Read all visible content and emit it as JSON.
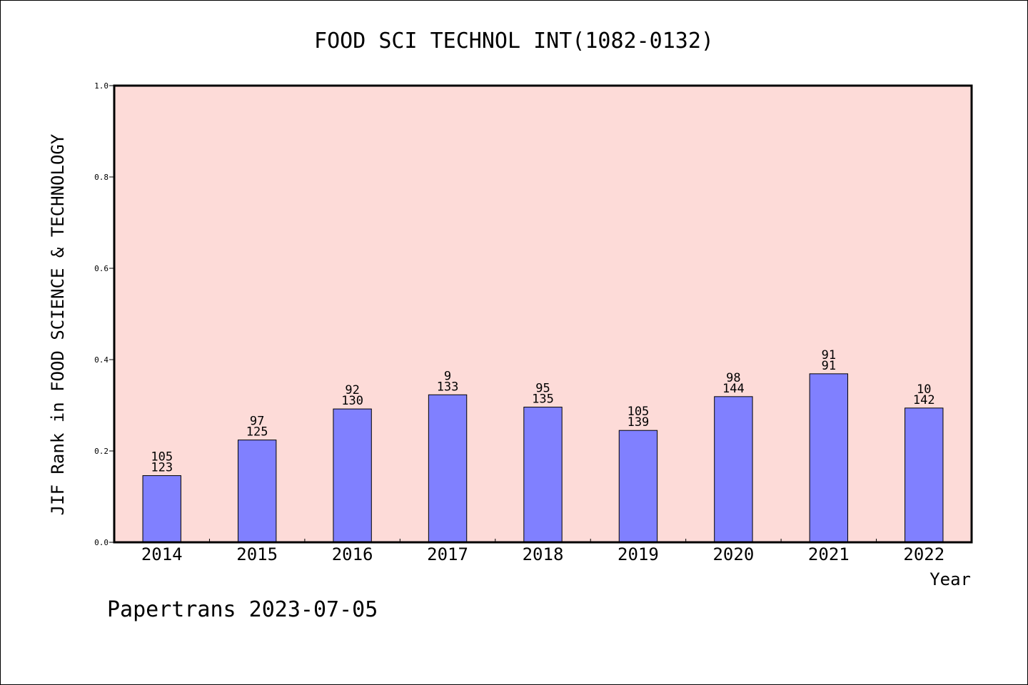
{
  "chart_data": {
    "type": "bar",
    "title": "FOOD SCI TECHNOL INT(1082-0132)",
    "xlabel": "Year",
    "ylabel": "JIF Rank in FOOD SCIENCE & TECHNOLOGY",
    "ylim": [
      0,
      1.0
    ],
    "yticks": [
      "0.0",
      "0.2",
      "0.4",
      "0.6",
      "0.8",
      "1.0"
    ],
    "categories": [
      "2014",
      "2015",
      "2016",
      "2017",
      "2018",
      "2019",
      "2020",
      "2021",
      "2022"
    ],
    "values": [
      0.146,
      0.224,
      0.292,
      0.323,
      0.296,
      0.245,
      0.319,
      0.369,
      0.294
    ],
    "rank_labels": [
      "105",
      "97",
      "92",
      "9",
      "95",
      "105",
      "98",
      "91",
      "10"
    ],
    "total_labels": [
      "123",
      "125",
      "130",
      "133",
      "135",
      "139",
      "144",
      "91",
      "142"
    ],
    "grid": false,
    "legend": "none"
  },
  "colors": {
    "plot_background": "#fddbd8",
    "bar_fill": "#8080ff",
    "bar_edge": "#000000",
    "frame": "#000000"
  },
  "footer": {
    "watermark": "Papertrans 2023-07-05"
  }
}
